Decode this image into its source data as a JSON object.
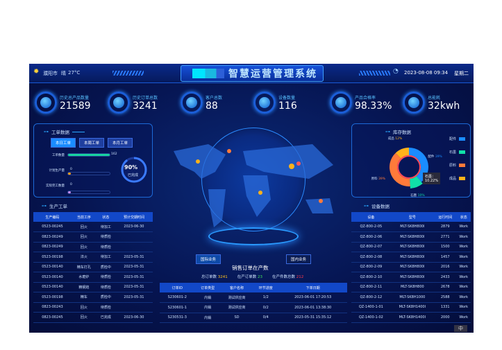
{
  "header": {
    "city": "濮阳市",
    "weather": "晴",
    "temp": "27°C",
    "title": "智慧运营管理系统",
    "datetime": "2023-08-08 09:34",
    "weekday": "星期二"
  },
  "kpis": [
    {
      "label": "历史总产品数量",
      "value": "21589"
    },
    {
      "label": "历史订单总数",
      "value": "3241"
    },
    {
      "label": "客户总数",
      "value": "88"
    },
    {
      "label": "设备数量",
      "value": "116"
    },
    {
      "label": "产品合格率",
      "value": "98.33%"
    },
    {
      "label": "总能耗",
      "value": "32kwh"
    }
  ],
  "work_orders": {
    "title": "工单数据",
    "tabs": [
      "本日工单",
      "本周工单",
      "本月工单"
    ],
    "active_tab": 0,
    "bars": [
      {
        "label": "工单数量",
        "value": "162",
        "fill": 1.0,
        "color": "#17d4a0"
      },
      {
        "label": "计划生产量",
        "value": "0",
        "fill": 0.06,
        "color": "#ffa01a"
      },
      {
        "label": "实际完工数量",
        "value": "0",
        "fill": 0.06,
        "color": "#c58cf0"
      }
    ],
    "gauge": {
      "percent": "90%",
      "label": "已完成",
      "fraction": 0.9
    }
  },
  "production": {
    "title": "生产工单",
    "columns": [
      "生产编码",
      "当前工序",
      "状态",
      "预计交期时间"
    ],
    "rows": [
      [
        "0523-00245",
        "回火",
        "待加工",
        "2023-06-30"
      ],
      [
        "0823-00249",
        "回火",
        "待质检",
        ""
      ],
      [
        "0823-00249",
        "回火",
        "待质检",
        ""
      ],
      [
        "0523-00198",
        "淬火",
        "待加工",
        "2023-05-31"
      ],
      [
        "0523-00140",
        "精车打孔",
        "质检中",
        "2023-05-31"
      ],
      [
        "0523-00140",
        "水磨炉",
        "待质检",
        "2023-05-31"
      ],
      [
        "0523-00140",
        "精钢炮",
        "待质检",
        "2023-05-31"
      ],
      [
        "0523-00198",
        "精车",
        "质检中",
        "2023-05-31"
      ],
      [
        "0823-00243",
        "回火",
        "待质检",
        ""
      ],
      [
        "0823-00245",
        "回火",
        "已完成",
        "2023-06-30"
      ]
    ]
  },
  "inventory": {
    "title": "库存数据",
    "slices": [
      {
        "name": "配件",
        "percent": 39,
        "color": "#1a8cff"
      },
      {
        "name": "石墨",
        "percent": 10,
        "color": "#10e0a8"
      },
      {
        "name": "原料",
        "percent": 39,
        "color": "#ff7a3a"
      },
      {
        "name": "成品",
        "percent": 12,
        "color": "#ffb21a"
      }
    ],
    "tooltip": {
      "name": "石墨：",
      "value": "10.22%"
    }
  },
  "equipment": {
    "title": "设备数据",
    "columns": [
      "设备",
      "型号",
      "运行时间",
      "状态"
    ],
    "rows": [
      [
        "QZ-800-2-05",
        "MLT-SK8H800I",
        "2879",
        "Work"
      ],
      [
        "QZ-800-2-06",
        "MLT-SK8H800I",
        "2771",
        "Work"
      ],
      [
        "QZ-800-2-07",
        "MLT-SK8H800I",
        "1500",
        "Work"
      ],
      [
        "QZ-800-2-08",
        "MLT-SK8H800I",
        "1457",
        "Work"
      ],
      [
        "QZ-800-2-09",
        "MLT-SK8H800I",
        "2016",
        "Work"
      ],
      [
        "QZ-800-2-10",
        "MLT-SK8H800I",
        "2433",
        "Work"
      ],
      [
        "QZ-800-2-11",
        "MLT-SK8H800",
        "2678",
        "Work"
      ],
      [
        "QZ-800-2-12",
        "MLT-SK8H1000",
        "2588",
        "Work"
      ],
      [
        "QZ-1400-1-01",
        "MLT-SK8H1400I",
        "1331",
        "Work"
      ],
      [
        "QZ-1400-1-02",
        "MLT-SK8H1400I",
        "2000",
        "Work"
      ]
    ]
  },
  "sales": {
    "tabs": [
      "国际业务",
      "国内业务"
    ],
    "title": "销售订单在产数",
    "stats": [
      {
        "label": "总订单数",
        "value": "3241",
        "color": "#ffc21a"
      },
      {
        "label": "在产订单数",
        "value": "23",
        "color": "#3fe05a"
      },
      {
        "label": "在产件数总数",
        "value": "212",
        "color": "#ff3a4a"
      }
    ],
    "columns": [
      "订单ID",
      "订单类型",
      "客户名称",
      "环节进度",
      "下单日期"
    ],
    "rows": [
      [
        "S230601-2",
        "内销",
        "测试供应商",
        "1/2",
        "2023-06-01 17:20:53"
      ],
      [
        "S230601-1",
        "内销",
        "测试供应商",
        "0/2",
        "2023-06-01 13:38:30"
      ],
      [
        "S230531-3",
        "内销",
        "SD",
        "0/4",
        "2023-05-31 15:35:12"
      ]
    ]
  },
  "ime": "中"
}
